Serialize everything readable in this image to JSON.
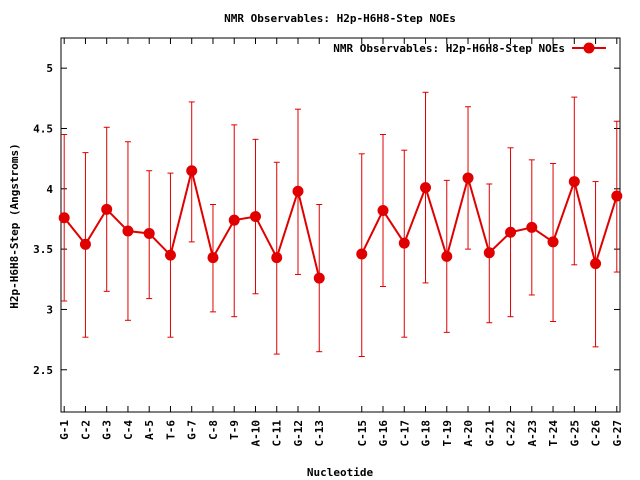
{
  "chart_data": {
    "type": "line",
    "title": "NMR Observables: H2p-H6H8-Step NOEs",
    "xlabel": "Nucleotide",
    "ylabel": "H2p-H6H8-Step (Angstroms)",
    "ylim": [
      2.15,
      5.25
    ],
    "yticks": [
      2.5,
      3,
      3.5,
      4,
      4.5,
      5
    ],
    "ytick_labels": [
      "2.5",
      "3",
      "3.5",
      "4",
      "4.5",
      "5"
    ],
    "grid": false,
    "legend_position": "top-right",
    "series": [
      {
        "name": "NMR Observables: H2p-H6H8-Step NOEs",
        "color": "#e00000",
        "points": [
          {
            "x": 1,
            "label": "G-1",
            "y": 3.76,
            "low": 3.07,
            "high": 4.45
          },
          {
            "x": 2,
            "label": "C-2",
            "y": 3.54,
            "low": 2.77,
            "high": 4.3
          },
          {
            "x": 3,
            "label": "G-3",
            "y": 3.83,
            "low": 3.15,
            "high": 4.51
          },
          {
            "x": 4,
            "label": "C-4",
            "y": 3.65,
            "low": 2.91,
            "high": 4.39
          },
          {
            "x": 5,
            "label": "A-5",
            "y": 3.63,
            "low": 3.09,
            "high": 4.15
          },
          {
            "x": 6,
            "label": "T-6",
            "y": 3.45,
            "low": 2.77,
            "high": 4.13
          },
          {
            "x": 7,
            "label": "G-7",
            "y": 4.15,
            "low": 3.56,
            "high": 4.72
          },
          {
            "x": 8,
            "label": "C-8",
            "y": 3.43,
            "low": 2.98,
            "high": 3.87
          },
          {
            "x": 9,
            "label": "T-9",
            "y": 3.74,
            "low": 2.94,
            "high": 4.53
          },
          {
            "x": 10,
            "label": "A-10",
            "y": 3.77,
            "low": 3.13,
            "high": 4.41
          },
          {
            "x": 11,
            "label": "C-11",
            "y": 3.43,
            "low": 2.63,
            "high": 4.22
          },
          {
            "x": 12,
            "label": "G-12",
            "y": 3.98,
            "low": 3.29,
            "high": 4.66
          },
          {
            "x": 13,
            "label": "C-13",
            "y": 3.26,
            "low": 2.65,
            "high": 3.87
          },
          {
            "x": 15,
            "label": "C-15",
            "y": 3.46,
            "low": 2.61,
            "high": 4.29
          },
          {
            "x": 16,
            "label": "G-16",
            "y": 3.82,
            "low": 3.19,
            "high": 4.45
          },
          {
            "x": 17,
            "label": "C-17",
            "y": 3.55,
            "low": 2.77,
            "high": 4.32
          },
          {
            "x": 18,
            "label": "G-18",
            "y": 4.01,
            "low": 3.22,
            "high": 4.8
          },
          {
            "x": 19,
            "label": "T-19",
            "y": 3.44,
            "low": 2.81,
            "high": 4.07
          },
          {
            "x": 20,
            "label": "A-20",
            "y": 4.09,
            "low": 3.5,
            "high": 4.68
          },
          {
            "x": 21,
            "label": "G-21",
            "y": 3.47,
            "low": 2.89,
            "high": 4.04
          },
          {
            "x": 22,
            "label": "C-22",
            "y": 3.64,
            "low": 2.94,
            "high": 4.34
          },
          {
            "x": 23,
            "label": "A-23",
            "y": 3.68,
            "low": 3.12,
            "high": 4.24
          },
          {
            "x": 24,
            "label": "T-24",
            "y": 3.56,
            "low": 2.9,
            "high": 4.21
          },
          {
            "x": 25,
            "label": "G-25",
            "y": 4.06,
            "low": 3.37,
            "high": 4.76
          },
          {
            "x": 26,
            "label": "C-26",
            "y": 3.38,
            "low": 2.69,
            "high": 4.06
          },
          {
            "x": 27,
            "label": "G-27",
            "y": 3.94,
            "low": 3.31,
            "high": 4.56
          }
        ]
      }
    ],
    "line_breaks_after_x": [
      13
    ]
  }
}
